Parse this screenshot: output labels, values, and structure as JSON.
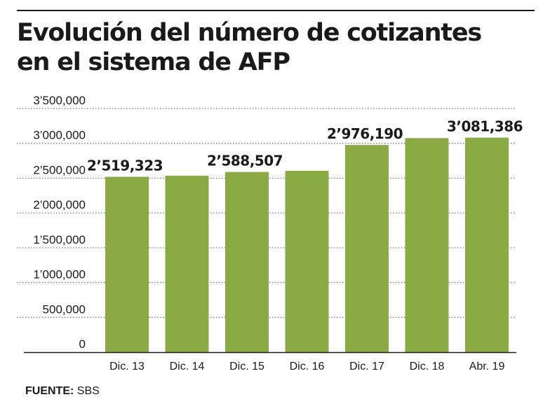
{
  "title": {
    "line1": "Evolución del número de cotizantes",
    "line2": "en el sistema de AFP"
  },
  "source": {
    "label": "FUENTE:",
    "value": "SBS"
  },
  "colors": {
    "bar": "#8aaa44",
    "gridline": "#555555",
    "axis": "#1a1a1a"
  },
  "chart_data": {
    "type": "bar",
    "title": "Evolución del número de cotizantes en el sistema de AFP",
    "categories": [
      "Dic. 13",
      "Dic. 14",
      "Dic. 15",
      "Dic. 16",
      "Dic. 17",
      "Dic. 18",
      "Abr. 19"
    ],
    "values": [
      2519323,
      2535000,
      2588507,
      2605000,
      2976190,
      3075000,
      3081386
    ],
    "data_labels": [
      "2’519,323",
      "",
      "2’588,507",
      "",
      "2’976,190",
      "",
      "3’081,386"
    ],
    "ylim": [
      0,
      3500000
    ],
    "yticks": [
      0,
      500000,
      1000000,
      1500000,
      2000000,
      2500000,
      3000000,
      3500000
    ],
    "ytick_labels": [
      "0",
      "500,000",
      "1’000,000",
      "1’500,000",
      "2’000,000",
      "2’500,000",
      "3’000,000",
      "3’500,000"
    ],
    "grid": "dashed-horizontal",
    "xlabel": "",
    "ylabel": ""
  }
}
